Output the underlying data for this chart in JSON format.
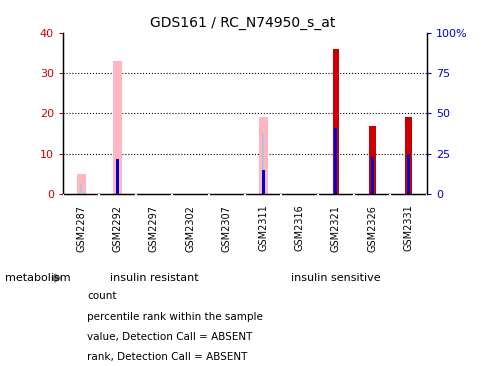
{
  "title": "GDS161 / RC_N74950_s_at",
  "categories": [
    "GSM2287",
    "GSM2292",
    "GSM2297",
    "GSM2302",
    "GSM2307",
    "GSM2311",
    "GSM2316",
    "GSM2321",
    "GSM2326",
    "GSM2331"
  ],
  "left_ylim": [
    0,
    40
  ],
  "right_ylim": [
    0,
    100
  ],
  "left_yticks": [
    0,
    10,
    20,
    30,
    40
  ],
  "right_yticks": [
    0,
    25,
    50,
    75,
    100
  ],
  "right_yticklabels": [
    "0",
    "25",
    "50",
    "75",
    "100%"
  ],
  "left_tick_color": "#cc0000",
  "right_tick_color": "#0000cc",
  "bars_red": [
    0,
    0,
    0,
    0,
    0,
    0,
    0,
    36,
    17,
    19
  ],
  "bars_blue_pct": [
    0,
    22,
    0,
    0,
    0,
    15,
    0,
    41,
    23,
    25
  ],
  "bars_pink": [
    5,
    33,
    0,
    0,
    0,
    19,
    0,
    0,
    0,
    0
  ],
  "bars_lightblue_pct": [
    2.5,
    0,
    0,
    0,
    0,
    15,
    0,
    0,
    0,
    0
  ],
  "groups": [
    {
      "label": "insulin resistant",
      "indices": [
        0,
        1,
        2,
        3,
        4
      ],
      "color": "#90ee90"
    },
    {
      "label": "insulin sensitive",
      "indices": [
        5,
        6,
        7,
        8,
        9
      ],
      "color": "#44dd44"
    }
  ],
  "group_label": "metabolism",
  "legend_items": [
    {
      "color": "#cc0000",
      "label": "count"
    },
    {
      "color": "#0000cc",
      "label": "percentile rank within the sample"
    },
    {
      "color": "#ffb6c1",
      "label": "value, Detection Call = ABSENT"
    },
    {
      "color": "#b0c4de",
      "label": "rank, Detection Call = ABSENT"
    }
  ]
}
